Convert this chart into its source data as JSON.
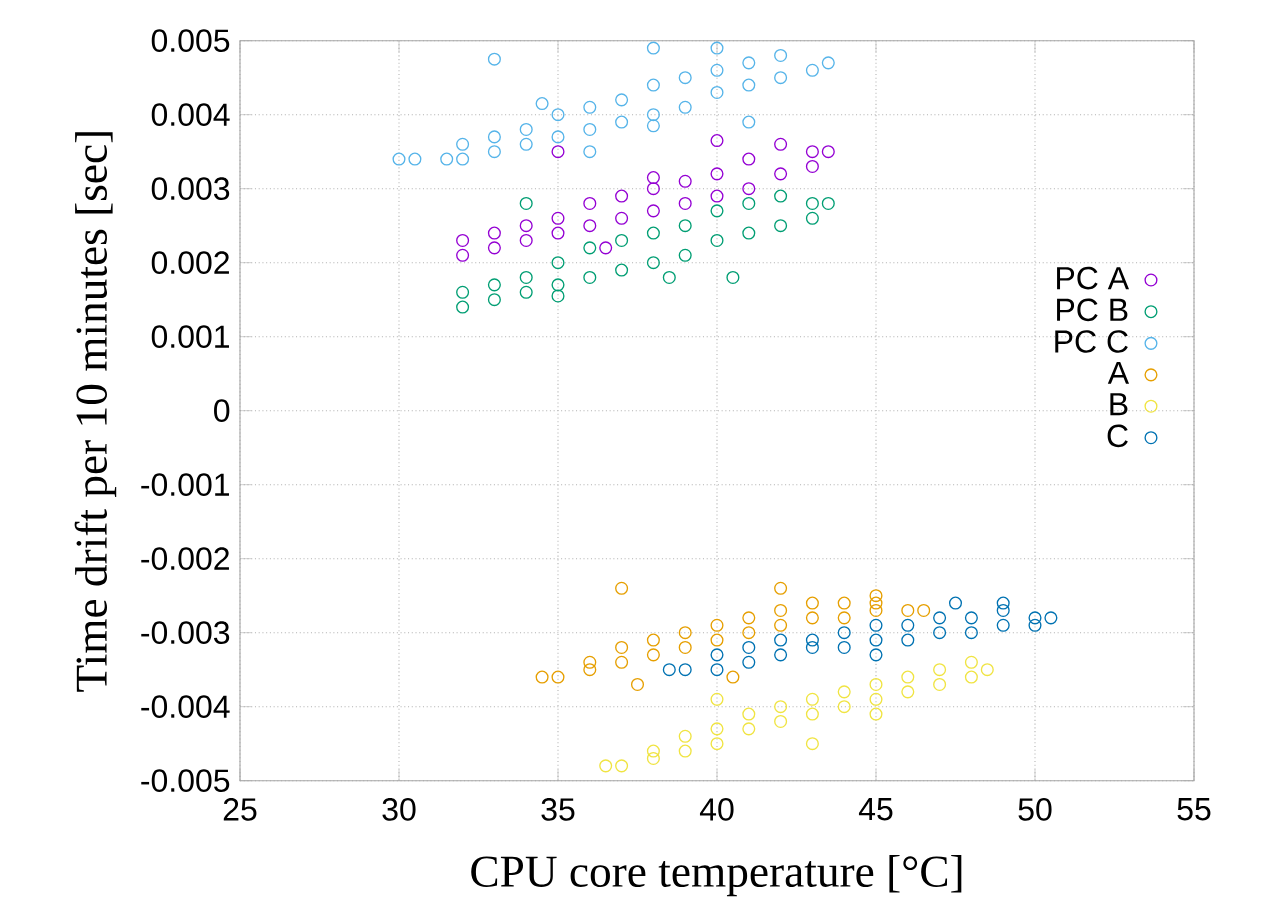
{
  "chart_data": {
    "type": "scatter",
    "xlabel": "CPU core temperature [°C]",
    "ylabel": "Time drift per 10 minutes [sec]",
    "xlim": [
      25,
      55
    ],
    "xticks": [
      25,
      30,
      35,
      40,
      45,
      50,
      55
    ],
    "ylim": [
      -0.005,
      0.005
    ],
    "yticks": [
      -0.005,
      -0.004,
      -0.003,
      -0.002,
      -0.001,
      0,
      0.001,
      0.002,
      0.003,
      0.004,
      0.005
    ],
    "grid": true,
    "legend": "right",
    "marker": "circle",
    "series": [
      {
        "name": "PC A",
        "color": "#9400d3",
        "x": [
          32,
          32,
          33,
          33,
          34,
          34,
          35,
          35,
          36,
          36,
          37,
          37,
          38,
          38,
          39,
          39,
          40,
          40,
          41,
          41,
          42,
          42,
          43,
          43,
          43.5,
          35,
          40,
          38,
          36.5
        ],
        "values": [
          0.0021,
          0.0023,
          0.0022,
          0.0024,
          0.0023,
          0.0025,
          0.0024,
          0.0026,
          0.0025,
          0.0028,
          0.0026,
          0.0029,
          0.0027,
          0.003,
          0.0028,
          0.0031,
          0.0029,
          0.0032,
          0.003,
          0.0034,
          0.0032,
          0.0036,
          0.0033,
          0.0035,
          0.0035,
          0.0035,
          0.00365,
          0.00315,
          0.0022
        ]
      },
      {
        "name": "PC B",
        "color": "#009e73",
        "x": [
          32,
          32,
          33,
          33,
          34,
          34,
          35,
          35,
          36,
          36,
          37,
          37,
          38,
          38,
          39,
          39,
          40,
          40,
          41,
          41,
          42,
          42,
          43,
          43,
          43.5,
          34,
          38.5,
          40.5,
          35
        ],
        "values": [
          0.0014,
          0.0016,
          0.0015,
          0.0017,
          0.0016,
          0.0018,
          0.0017,
          0.002,
          0.0018,
          0.0022,
          0.0019,
          0.0023,
          0.002,
          0.0024,
          0.0021,
          0.0025,
          0.0023,
          0.0027,
          0.0024,
          0.0028,
          0.0025,
          0.0029,
          0.0026,
          0.0028,
          0.0028,
          0.0028,
          0.0018,
          0.0018,
          0.00155
        ]
      },
      {
        "name": "PC C",
        "color": "#56b4e9",
        "x": [
          30,
          30.5,
          31.5,
          32,
          32,
          33,
          33,
          34,
          34,
          35,
          35,
          36,
          36,
          37,
          37,
          38,
          38,
          39,
          39,
          40,
          40,
          41,
          41,
          42,
          42,
          43,
          43.5,
          33,
          38,
          40,
          41,
          38,
          36,
          34.5
        ],
        "values": [
          0.0034,
          0.0034,
          0.0034,
          0.0036,
          0.0034,
          0.0035,
          0.0037,
          0.0036,
          0.0038,
          0.0037,
          0.004,
          0.0038,
          0.0041,
          0.0039,
          0.0042,
          0.004,
          0.0044,
          0.0041,
          0.0045,
          0.0043,
          0.0046,
          0.0044,
          0.0047,
          0.0045,
          0.0048,
          0.0046,
          0.0047,
          0.00475,
          0.0049,
          0.0049,
          0.0039,
          0.00385,
          0.0035,
          0.00415
        ]
      },
      {
        "name": "A",
        "color": "#e69f00",
        "x": [
          34.5,
          35,
          36,
          36,
          37,
          37,
          38,
          38,
          39,
          39,
          40,
          40,
          41,
          41,
          42,
          42,
          43,
          43,
          44,
          44,
          45,
          45,
          46,
          46.5,
          37,
          42,
          45,
          37.5,
          40.5
        ],
        "values": [
          -0.0036,
          -0.0036,
          -0.0035,
          -0.0034,
          -0.0034,
          -0.0032,
          -0.0033,
          -0.0031,
          -0.0032,
          -0.003,
          -0.0031,
          -0.0029,
          -0.003,
          -0.0028,
          -0.0029,
          -0.0027,
          -0.0028,
          -0.0026,
          -0.0028,
          -0.0026,
          -0.0027,
          -0.0026,
          -0.0027,
          -0.0027,
          -0.0024,
          -0.0024,
          -0.0025,
          -0.0037,
          -0.0036
        ]
      },
      {
        "name": "B",
        "color": "#f0e442",
        "x": [
          36.5,
          37,
          38,
          38,
          39,
          39,
          40,
          40,
          41,
          41,
          42,
          42,
          43,
          43,
          44,
          44,
          45,
          45,
          46,
          46,
          47,
          47,
          48,
          48,
          48.5,
          40,
          43,
          45
        ],
        "values": [
          -0.0048,
          -0.0048,
          -0.0047,
          -0.0046,
          -0.0046,
          -0.0044,
          -0.0045,
          -0.0043,
          -0.0043,
          -0.0041,
          -0.0042,
          -0.004,
          -0.0041,
          -0.0039,
          -0.004,
          -0.0038,
          -0.0039,
          -0.0037,
          -0.0038,
          -0.0036,
          -0.0037,
          -0.0035,
          -0.0036,
          -0.0034,
          -0.0035,
          -0.0039,
          -0.0045,
          -0.0041
        ]
      },
      {
        "name": "C",
        "color": "#0072b2",
        "x": [
          38.5,
          39,
          40,
          40,
          41,
          41,
          42,
          42,
          43,
          43,
          44,
          44,
          45,
          45,
          46,
          46,
          47,
          47,
          48,
          48,
          49,
          49,
          50,
          50,
          50.5,
          49,
          45,
          47.5
        ],
        "values": [
          -0.0035,
          -0.0035,
          -0.0035,
          -0.0033,
          -0.0034,
          -0.0032,
          -0.0033,
          -0.0031,
          -0.0032,
          -0.0031,
          -0.0032,
          -0.003,
          -0.0031,
          -0.0029,
          -0.0031,
          -0.0029,
          -0.003,
          -0.0028,
          -0.003,
          -0.0028,
          -0.0029,
          -0.0027,
          -0.0029,
          -0.0028,
          -0.0028,
          -0.0026,
          -0.0033,
          -0.0026
        ]
      }
    ]
  }
}
